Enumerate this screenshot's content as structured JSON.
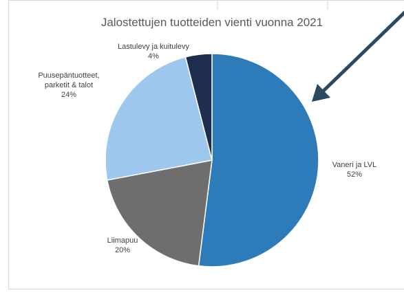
{
  "chart_data": {
    "type": "pie",
    "title": "Jalostettujen tuotteiden vienti vuonna 2021",
    "categories": [
      "Vaneri ja LVL",
      "Liimapuu",
      "Puusepäntuotteet, parketit & talot",
      "Lastulevy ja kuitulevy"
    ],
    "values": [
      52,
      20,
      24,
      4
    ],
    "value_labels": [
      "52%",
      "20%",
      "24%",
      "4%"
    ],
    "colors": [
      "#2e7bba",
      "#6e6e6e",
      "#9dc7ec",
      "#1f2d4f"
    ]
  }
}
